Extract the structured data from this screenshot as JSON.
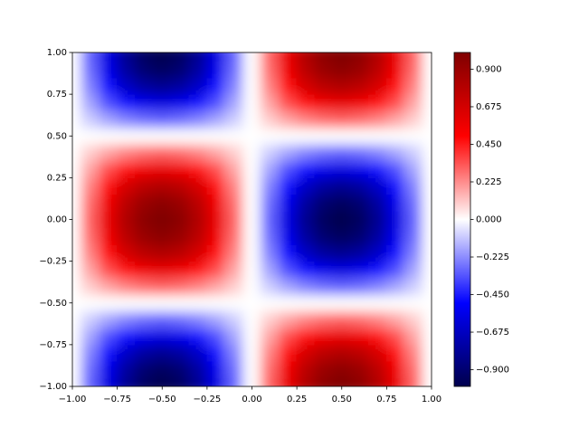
{
  "chart_data": {
    "type": "contourf",
    "colormap": "seismic",
    "zlim": [
      -1,
      1
    ],
    "x": [
      -1,
      -0.9,
      -0.8,
      -0.7,
      -0.6,
      -0.5,
      -0.4,
      -0.3,
      -0.2,
      -0.1,
      0,
      0.1,
      0.2,
      0.3,
      0.4,
      0.5,
      0.6,
      0.7,
      0.8,
      0.9,
      1
    ],
    "y": [
      -1,
      -0.9,
      -0.8,
      -0.7,
      -0.6,
      -0.5,
      -0.4,
      -0.3,
      -0.2,
      -0.1,
      0,
      0.1,
      0.2,
      0.3,
      0.4,
      0.5,
      0.6,
      0.7,
      0.8,
      0.9,
      1
    ],
    "z": [
      [
        0,
        -0.31,
        -0.59,
        -0.81,
        -0.95,
        -1,
        -0.95,
        -0.81,
        -0.59,
        -0.31,
        0,
        0.31,
        0.59,
        0.81,
        0.95,
        1,
        0.95,
        0.81,
        0.59,
        0.31,
        0
      ],
      [
        0,
        -0.29,
        -0.56,
        -0.77,
        -0.9,
        -0.95,
        -0.9,
        -0.77,
        -0.56,
        -0.29,
        0,
        0.29,
        0.56,
        0.77,
        0.9,
        0.95,
        0.9,
        0.77,
        0.56,
        0.29,
        0
      ],
      [
        0,
        -0.25,
        -0.48,
        -0.66,
        -0.77,
        -0.81,
        -0.77,
        -0.66,
        -0.48,
        -0.25,
        0,
        0.25,
        0.48,
        0.66,
        0.77,
        0.81,
        0.77,
        0.66,
        0.48,
        0.25,
        0
      ],
      [
        0,
        -0.18,
        -0.35,
        -0.48,
        -0.56,
        -0.59,
        -0.56,
        -0.48,
        -0.35,
        -0.18,
        0,
        0.18,
        0.35,
        0.48,
        0.56,
        0.59,
        0.56,
        0.48,
        0.35,
        0.18,
        0
      ],
      [
        0,
        -0.1,
        -0.18,
        -0.25,
        -0.29,
        -0.31,
        -0.29,
        -0.25,
        -0.18,
        -0.1,
        0,
        0.1,
        0.18,
        0.25,
        0.29,
        0.31,
        0.29,
        0.25,
        0.18,
        0.1,
        0
      ],
      [
        0,
        0,
        0,
        0,
        0,
        0,
        0,
        0,
        0,
        0,
        0,
        0,
        0,
        0,
        0,
        0,
        0,
        0,
        0,
        0,
        0
      ],
      [
        0,
        0.1,
        0.18,
        0.25,
        0.29,
        0.31,
        0.29,
        0.25,
        0.18,
        0.1,
        0,
        -0.1,
        -0.18,
        -0.25,
        -0.29,
        -0.31,
        -0.29,
        -0.25,
        -0.18,
        -0.1,
        0
      ],
      [
        0,
        0.18,
        0.35,
        0.48,
        0.56,
        0.59,
        0.56,
        0.48,
        0.35,
        0.18,
        0,
        -0.18,
        -0.35,
        -0.48,
        -0.56,
        -0.59,
        -0.56,
        -0.48,
        -0.35,
        -0.18,
        0
      ],
      [
        0,
        0.25,
        0.48,
        0.66,
        0.77,
        0.81,
        0.77,
        0.66,
        0.48,
        0.25,
        0,
        -0.25,
        -0.48,
        -0.66,
        -0.77,
        -0.81,
        -0.77,
        -0.66,
        -0.48,
        -0.25,
        0
      ],
      [
        0,
        0.29,
        0.56,
        0.77,
        0.9,
        0.95,
        0.9,
        0.77,
        0.56,
        0.29,
        0,
        -0.29,
        -0.56,
        -0.77,
        -0.9,
        -0.95,
        -0.9,
        -0.77,
        -0.56,
        -0.29,
        0
      ],
      [
        0,
        0.31,
        0.59,
        0.81,
        0.95,
        1,
        0.95,
        0.81,
        0.59,
        0.31,
        0,
        -0.31,
        -0.59,
        -0.81,
        -0.95,
        -1,
        -0.95,
        -0.81,
        -0.59,
        -0.31,
        0
      ],
      [
        0,
        0.29,
        0.56,
        0.77,
        0.9,
        0.95,
        0.9,
        0.77,
        0.56,
        0.29,
        0,
        -0.29,
        -0.56,
        -0.77,
        -0.9,
        -0.95,
        -0.9,
        -0.77,
        -0.56,
        -0.29,
        0
      ],
      [
        0,
        0.25,
        0.48,
        0.66,
        0.77,
        0.81,
        0.77,
        0.66,
        0.48,
        0.25,
        0,
        -0.25,
        -0.48,
        -0.66,
        -0.77,
        -0.81,
        -0.77,
        -0.66,
        -0.48,
        -0.25,
        0
      ],
      [
        0,
        0.18,
        0.35,
        0.48,
        0.56,
        0.59,
        0.56,
        0.48,
        0.35,
        0.18,
        0,
        -0.18,
        -0.35,
        -0.48,
        -0.56,
        -0.59,
        -0.56,
        -0.48,
        -0.35,
        -0.18,
        0
      ],
      [
        0,
        0.1,
        0.18,
        0.25,
        0.29,
        0.31,
        0.29,
        0.25,
        0.18,
        0.1,
        0,
        -0.1,
        -0.18,
        -0.25,
        -0.29,
        -0.31,
        -0.29,
        -0.25,
        -0.18,
        -0.1,
        0
      ],
      [
        0,
        0,
        0,
        0,
        0,
        0,
        0,
        0,
        0,
        0,
        0,
        0,
        0,
        0,
        0,
        0,
        0,
        0,
        0,
        0,
        0
      ],
      [
        0,
        -0.1,
        -0.18,
        -0.25,
        -0.29,
        -0.31,
        -0.29,
        -0.25,
        -0.18,
        -0.1,
        0,
        0.1,
        0.18,
        0.25,
        0.29,
        0.31,
        0.29,
        0.25,
        0.18,
        0.1,
        0
      ],
      [
        0,
        -0.18,
        -0.35,
        -0.48,
        -0.56,
        -0.59,
        -0.56,
        -0.48,
        -0.35,
        -0.18,
        0,
        0.18,
        0.35,
        0.48,
        0.56,
        0.59,
        0.56,
        0.48,
        0.35,
        0.18,
        0
      ],
      [
        0,
        -0.25,
        -0.48,
        -0.66,
        -0.77,
        -0.81,
        -0.77,
        -0.66,
        -0.48,
        -0.25,
        0,
        0.25,
        0.48,
        0.66,
        0.77,
        0.81,
        0.77,
        0.66,
        0.48,
        0.25,
        0
      ],
      [
        0,
        -0.29,
        -0.56,
        -0.77,
        -0.9,
        -0.95,
        -0.9,
        -0.77,
        -0.56,
        -0.29,
        0,
        0.29,
        0.56,
        0.77,
        0.9,
        0.95,
        0.9,
        0.77,
        0.56,
        0.29,
        0
      ],
      [
        0,
        -0.31,
        -0.59,
        -0.81,
        -0.95,
        -1,
        -0.95,
        -0.81,
        -0.59,
        -0.31,
        0,
        0.31,
        0.59,
        0.81,
        0.95,
        1,
        0.95,
        0.81,
        0.59,
        0.31,
        0
      ]
    ],
    "xlim": [
      -1,
      1
    ],
    "ylim": [
      -1,
      1
    ],
    "xticks": [
      {
        "value": -1,
        "label": "−1.00"
      },
      {
        "value": -0.75,
        "label": "−0.75"
      },
      {
        "value": -0.5,
        "label": "−0.50"
      },
      {
        "value": -0.25,
        "label": "−0.25"
      },
      {
        "value": 0,
        "label": "0.00"
      },
      {
        "value": 0.25,
        "label": "0.25"
      },
      {
        "value": 0.5,
        "label": "0.50"
      },
      {
        "value": 0.75,
        "label": "0.75"
      },
      {
        "value": 1,
        "label": "1.00"
      }
    ],
    "yticks": [
      {
        "value": -1,
        "label": "−1.00"
      },
      {
        "value": -0.75,
        "label": "−0.75"
      },
      {
        "value": -0.5,
        "label": "−0.50"
      },
      {
        "value": -0.25,
        "label": "−0.25"
      },
      {
        "value": 0,
        "label": "0.00"
      },
      {
        "value": 0.25,
        "label": "0.25"
      },
      {
        "value": 0.5,
        "label": "0.50"
      },
      {
        "value": 0.75,
        "label": "0.75"
      },
      {
        "value": 1,
        "label": "1.00"
      }
    ],
    "cticks": [
      {
        "value": -0.9,
        "label": "−0.900"
      },
      {
        "value": -0.675,
        "label": "−0.675"
      },
      {
        "value": -0.45,
        "label": "−0.450"
      },
      {
        "value": -0.225,
        "label": "−0.225"
      },
      {
        "value": 0,
        "label": "0.000"
      },
      {
        "value": 0.225,
        "label": "0.225"
      },
      {
        "value": 0.45,
        "label": "0.450"
      },
      {
        "value": 0.675,
        "label": "0.675"
      },
      {
        "value": 0.9,
        "label": "0.900"
      }
    ]
  }
}
